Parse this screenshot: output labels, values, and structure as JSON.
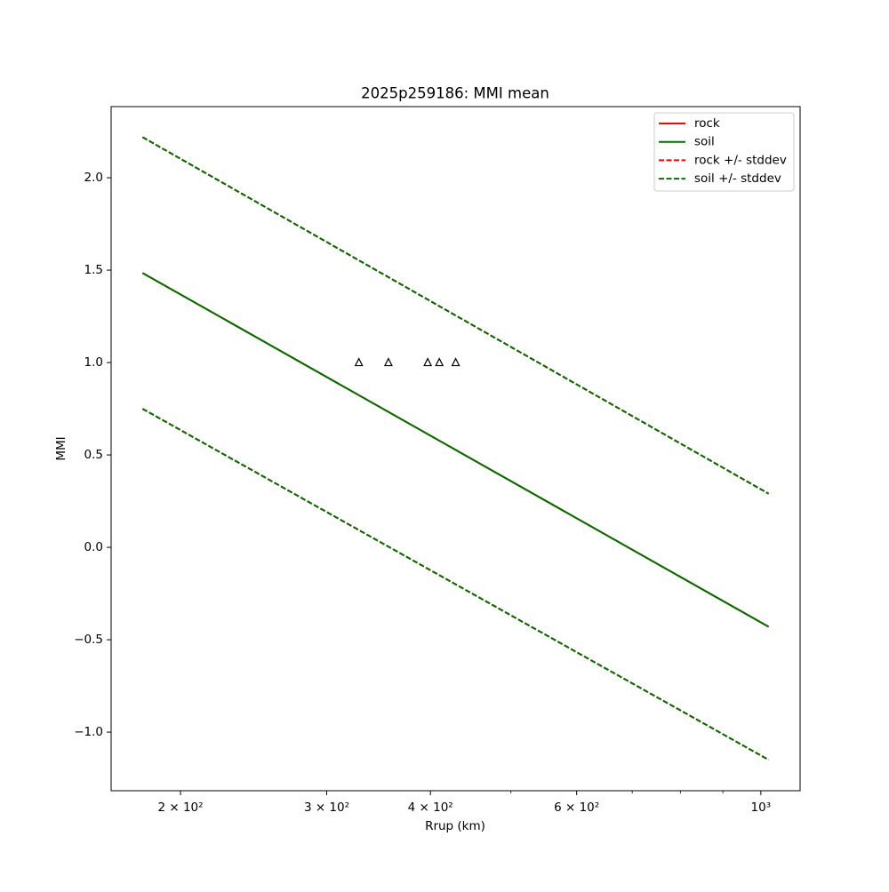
{
  "chart_data": {
    "type": "line",
    "title": "2025p259186: MMI mean",
    "xlabel": "Rrup (km)",
    "ylabel": "MMI",
    "xscale": "log",
    "xlim": [
      165,
      1115
    ],
    "ylim": [
      -1.317,
      2.385
    ],
    "xticks": [
      {
        "value": 200,
        "label": "2 × 10²"
      },
      {
        "value": 300,
        "label": "3 × 10²"
      },
      {
        "value": 400,
        "label": "4 × 10²"
      },
      {
        "value": 600,
        "label": "6 × 10²"
      },
      {
        "value": 1000,
        "label": "10³"
      }
    ],
    "xminorticks": [
      500,
      700,
      800,
      900
    ],
    "yticks": [
      {
        "value": -1.0,
        "label": "−1.0"
      },
      {
        "value": -0.5,
        "label": "−0.5"
      },
      {
        "value": 0.0,
        "label": "0.0"
      },
      {
        "value": 0.5,
        "label": "0.5"
      },
      {
        "value": 1.0,
        "label": "1.0"
      },
      {
        "value": 1.5,
        "label": "1.5"
      },
      {
        "value": 2.0,
        "label": "2.0"
      }
    ],
    "legend": "upper right",
    "series": [
      {
        "name": "rock",
        "color": "#ff0000",
        "dashed": false,
        "x": [
          180,
          1022
        ],
        "values": [
          1.485,
          -0.43
        ]
      },
      {
        "name": "soil",
        "color": "#007000",
        "dashed": false,
        "x": [
          180,
          1022
        ],
        "values": [
          1.485,
          -0.43
        ]
      },
      {
        "name": "rock +/- stddev",
        "color": "#ff0000",
        "dashed": true,
        "x": [
          180,
          1022
        ],
        "upper": [
          2.22,
          0.29
        ],
        "lower": [
          0.75,
          -1.15
        ]
      },
      {
        "name": "soil +/- stddev",
        "color": "#007000",
        "dashed": true,
        "x": [
          180,
          1022
        ],
        "upper": [
          2.22,
          0.29
        ],
        "lower": [
          0.75,
          -1.15
        ]
      }
    ],
    "points": {
      "marker": "triangle",
      "color": "#000000",
      "x": [
        328,
        356,
        397,
        410,
        429
      ],
      "y": [
        1.0,
        1.0,
        1.0,
        1.0,
        1.0
      ]
    }
  }
}
